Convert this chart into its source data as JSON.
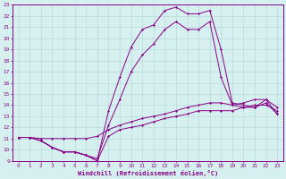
{
  "xlabel": "Windchill (Refroidissement éolien,°C)",
  "background_color": "#d6f0f0",
  "line_color": "#880088",
  "grid_color": "#b8dada",
  "xlim_min": -0.5,
  "xlim_max": 23.5,
  "ylim_min": 9,
  "ylim_max": 23,
  "xticks": [
    0,
    1,
    2,
    3,
    4,
    5,
    6,
    7,
    8,
    9,
    10,
    11,
    12,
    13,
    14,
    15,
    16,
    17,
    18,
    19,
    20,
    21,
    22,
    23
  ],
  "yticks": [
    9,
    10,
    11,
    12,
    13,
    14,
    15,
    16,
    17,
    18,
    19,
    20,
    21,
    22,
    23
  ],
  "series_main": [
    11.1,
    11.1,
    10.8,
    10.2,
    9.8,
    9.8,
    9.5,
    9.0,
    13.5,
    16.5,
    19.2,
    20.8,
    21.2,
    22.5,
    22.8,
    22.2,
    22.2,
    22.5,
    19.0,
    14.2,
    14.0,
    13.8,
    14.5,
    13.2
  ],
  "series_mid": [
    11.1,
    11.1,
    10.8,
    10.2,
    9.8,
    9.8,
    9.5,
    9.2,
    12.2,
    14.5,
    17.0,
    18.5,
    19.5,
    20.8,
    21.5,
    20.8,
    20.8,
    21.5,
    16.5,
    14.0,
    13.8,
    13.8,
    14.2,
    13.2
  ],
  "series_flat1": [
    11.1,
    11.1,
    11.0,
    11.0,
    11.0,
    11.0,
    11.0,
    11.2,
    11.8,
    12.2,
    12.5,
    12.8,
    13.0,
    13.2,
    13.5,
    13.8,
    14.0,
    14.2,
    14.2,
    14.0,
    14.2,
    14.5,
    14.5,
    13.8
  ],
  "series_flat2": [
    11.1,
    11.1,
    10.8,
    10.2,
    9.8,
    9.8,
    9.5,
    9.0,
    11.2,
    11.8,
    12.0,
    12.2,
    12.5,
    12.8,
    13.0,
    13.2,
    13.5,
    13.5,
    13.5,
    13.5,
    13.8,
    14.0,
    14.0,
    13.5
  ]
}
